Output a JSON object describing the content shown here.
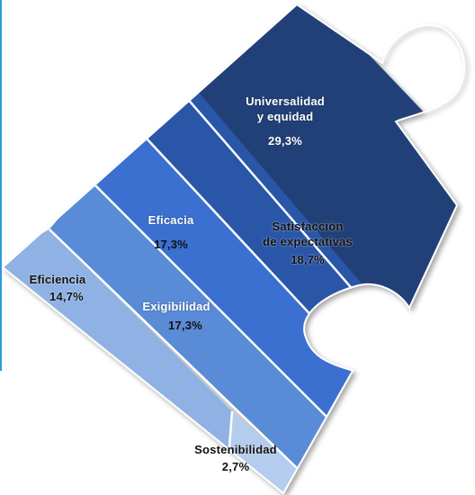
{
  "segments": [
    {
      "id": "universalidad",
      "name_line1": "Universalidad",
      "name_line2": "y equidad",
      "value": "29,3%",
      "color": "#223f78"
    },
    {
      "id": "satisfaccion",
      "name_line1": "Satisfacción",
      "name_line2": "de expectativas",
      "value": "18,7%",
      "color": "#2b56a8"
    },
    {
      "id": "eficacia",
      "name_line1": "Eficacia",
      "value": "17,3%",
      "color": "#3a70d0"
    },
    {
      "id": "exigibilidad",
      "name_line1": "Exigibilidad",
      "value": "17,3%",
      "color": "#5a8bd6"
    },
    {
      "id": "eficiencia",
      "name_line1": "Eficiencia",
      "value": "14,7%",
      "color": "#8fb1e3"
    },
    {
      "id": "sostenibilidad",
      "name_line1": "Sostenibilidad",
      "value": "2,7%",
      "color": "#b4ccee"
    }
  ]
}
